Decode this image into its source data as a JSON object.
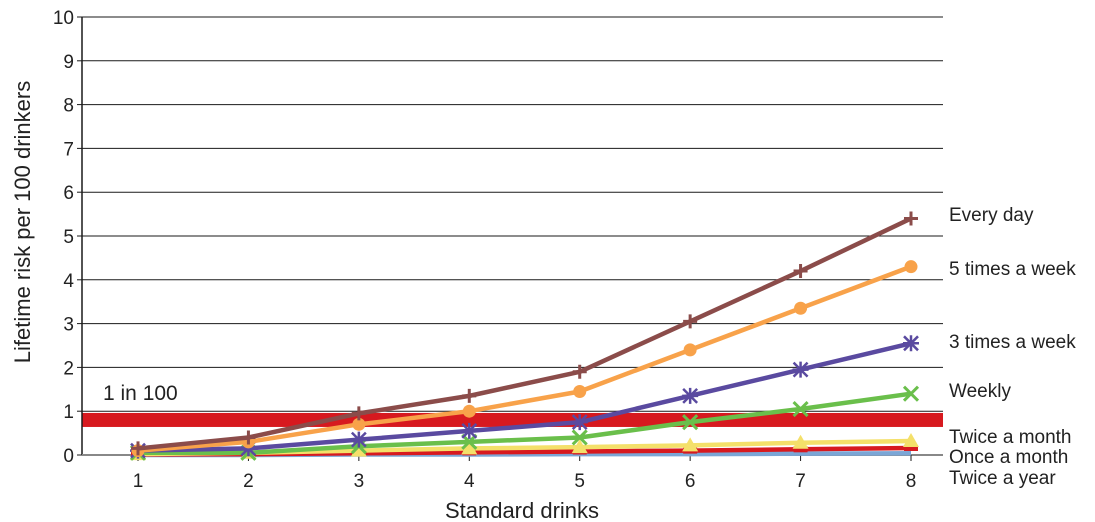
{
  "chart_data": {
    "type": "line",
    "title": "",
    "xlabel": "Standard drinks",
    "ylabel": "Lifetime risk per 100 drinkers",
    "x": [
      1,
      2,
      3,
      4,
      5,
      6,
      7,
      8
    ],
    "xlim": [
      0.5,
      8.3
    ],
    "ylim": [
      0,
      10
    ],
    "yticks": [
      0,
      1,
      2,
      3,
      4,
      5,
      6,
      7,
      8,
      9,
      10
    ],
    "grid": true,
    "legend": "right, labels at line ends",
    "threshold": {
      "value": 0.8,
      "label": "1 in 100",
      "color": "#d7191f"
    },
    "series": [
      {
        "name": "Every day",
        "marker": "plus",
        "color": "#8b4c4a",
        "values": [
          0.15,
          0.4,
          0.95,
          1.35,
          1.9,
          3.05,
          4.2,
          5.4
        ]
      },
      {
        "name": "5 times a week",
        "marker": "circle",
        "color": "#f8a24a",
        "values": [
          0.1,
          0.3,
          0.7,
          1.0,
          1.45,
          2.4,
          3.35,
          4.3
        ]
      },
      {
        "name": "3 times a week",
        "marker": "star",
        "color": "#5a4aa0",
        "values": [
          0.1,
          0.15,
          0.35,
          0.55,
          0.75,
          1.35,
          1.95,
          2.55
        ]
      },
      {
        "name": "Weekly",
        "marker": "x",
        "color": "#6abf4b",
        "values": [
          0.05,
          0.05,
          0.2,
          0.3,
          0.4,
          0.75,
          1.05,
          1.4
        ]
      },
      {
        "name": "Twice a month",
        "marker": "triangle",
        "color": "#f4e06a",
        "values": [
          0.02,
          0.05,
          0.1,
          0.15,
          0.18,
          0.22,
          0.28,
          0.32
        ]
      },
      {
        "name": "Once a month",
        "marker": "dash",
        "color": "#d7191f",
        "values": [
          0.01,
          0.02,
          0.04,
          0.06,
          0.08,
          0.1,
          0.13,
          0.16
        ]
      },
      {
        "name": "Twice a year",
        "marker": "none",
        "color": "#7ba6d6",
        "values": [
          0.0,
          0.0,
          0.01,
          0.01,
          0.02,
          0.02,
          0.03,
          0.04
        ]
      }
    ]
  }
}
